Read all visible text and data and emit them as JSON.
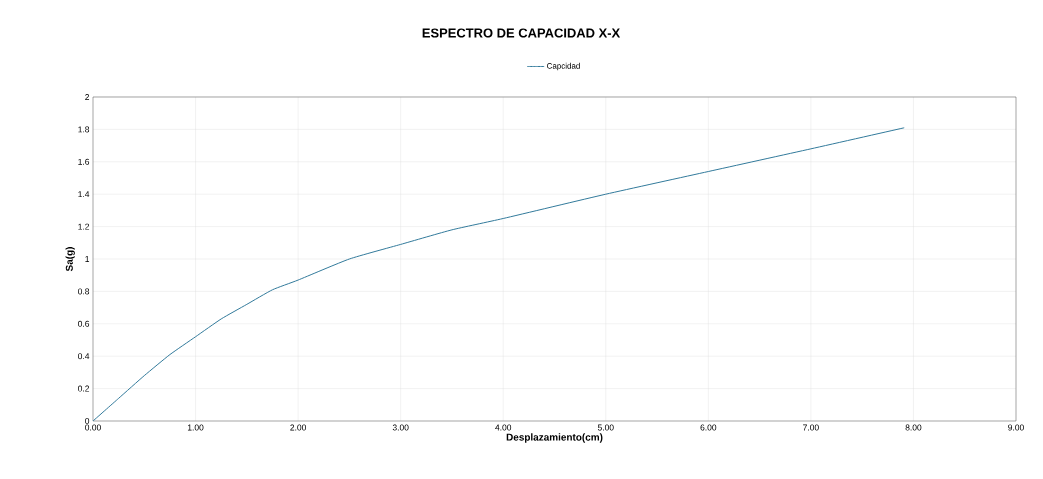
{
  "chart_data": {
    "type": "line",
    "title": "ESPECTRO DE CAPACIDAD X-X",
    "xlabel": "Desplazamiento(cm)",
    "ylabel": "Sa(g)",
    "x": [
      0,
      0.25,
      0.5,
      0.75,
      1,
      1.25,
      1.5,
      1.75,
      2,
      2.5,
      3,
      3.5,
      4,
      5,
      6,
      7,
      7.91
    ],
    "series": [
      {
        "name": "Capcidad",
        "color": "#31799b",
        "values": [
          0,
          0.14,
          0.28,
          0.41,
          0.52,
          0.63,
          0.72,
          0.81,
          0.87,
          1.0,
          1.09,
          1.18,
          1.25,
          1.4,
          1.54,
          1.68,
          1.81
        ]
      }
    ],
    "xlim": [
      0,
      9
    ],
    "ylim": [
      0,
      2
    ],
    "xticks": [
      {
        "value": 0,
        "label": "0.00"
      },
      {
        "value": 1,
        "label": "1.00"
      },
      {
        "value": 2,
        "label": "2.00"
      },
      {
        "value": 3,
        "label": "3.00"
      },
      {
        "value": 4,
        "label": "4.00"
      },
      {
        "value": 5,
        "label": "5.00"
      },
      {
        "value": 6,
        "label": "6.00"
      },
      {
        "value": 7,
        "label": "7.00"
      },
      {
        "value": 8,
        "label": "8.00"
      },
      {
        "value": 9,
        "label": "9.00"
      }
    ],
    "yticks": [
      0,
      0.2,
      0.4,
      0.6,
      0.8,
      1,
      1.2,
      1.4,
      1.6,
      1.8,
      2
    ],
    "grid": true,
    "legend": "top",
    "marker": "none",
    "line_style": "solid"
  }
}
